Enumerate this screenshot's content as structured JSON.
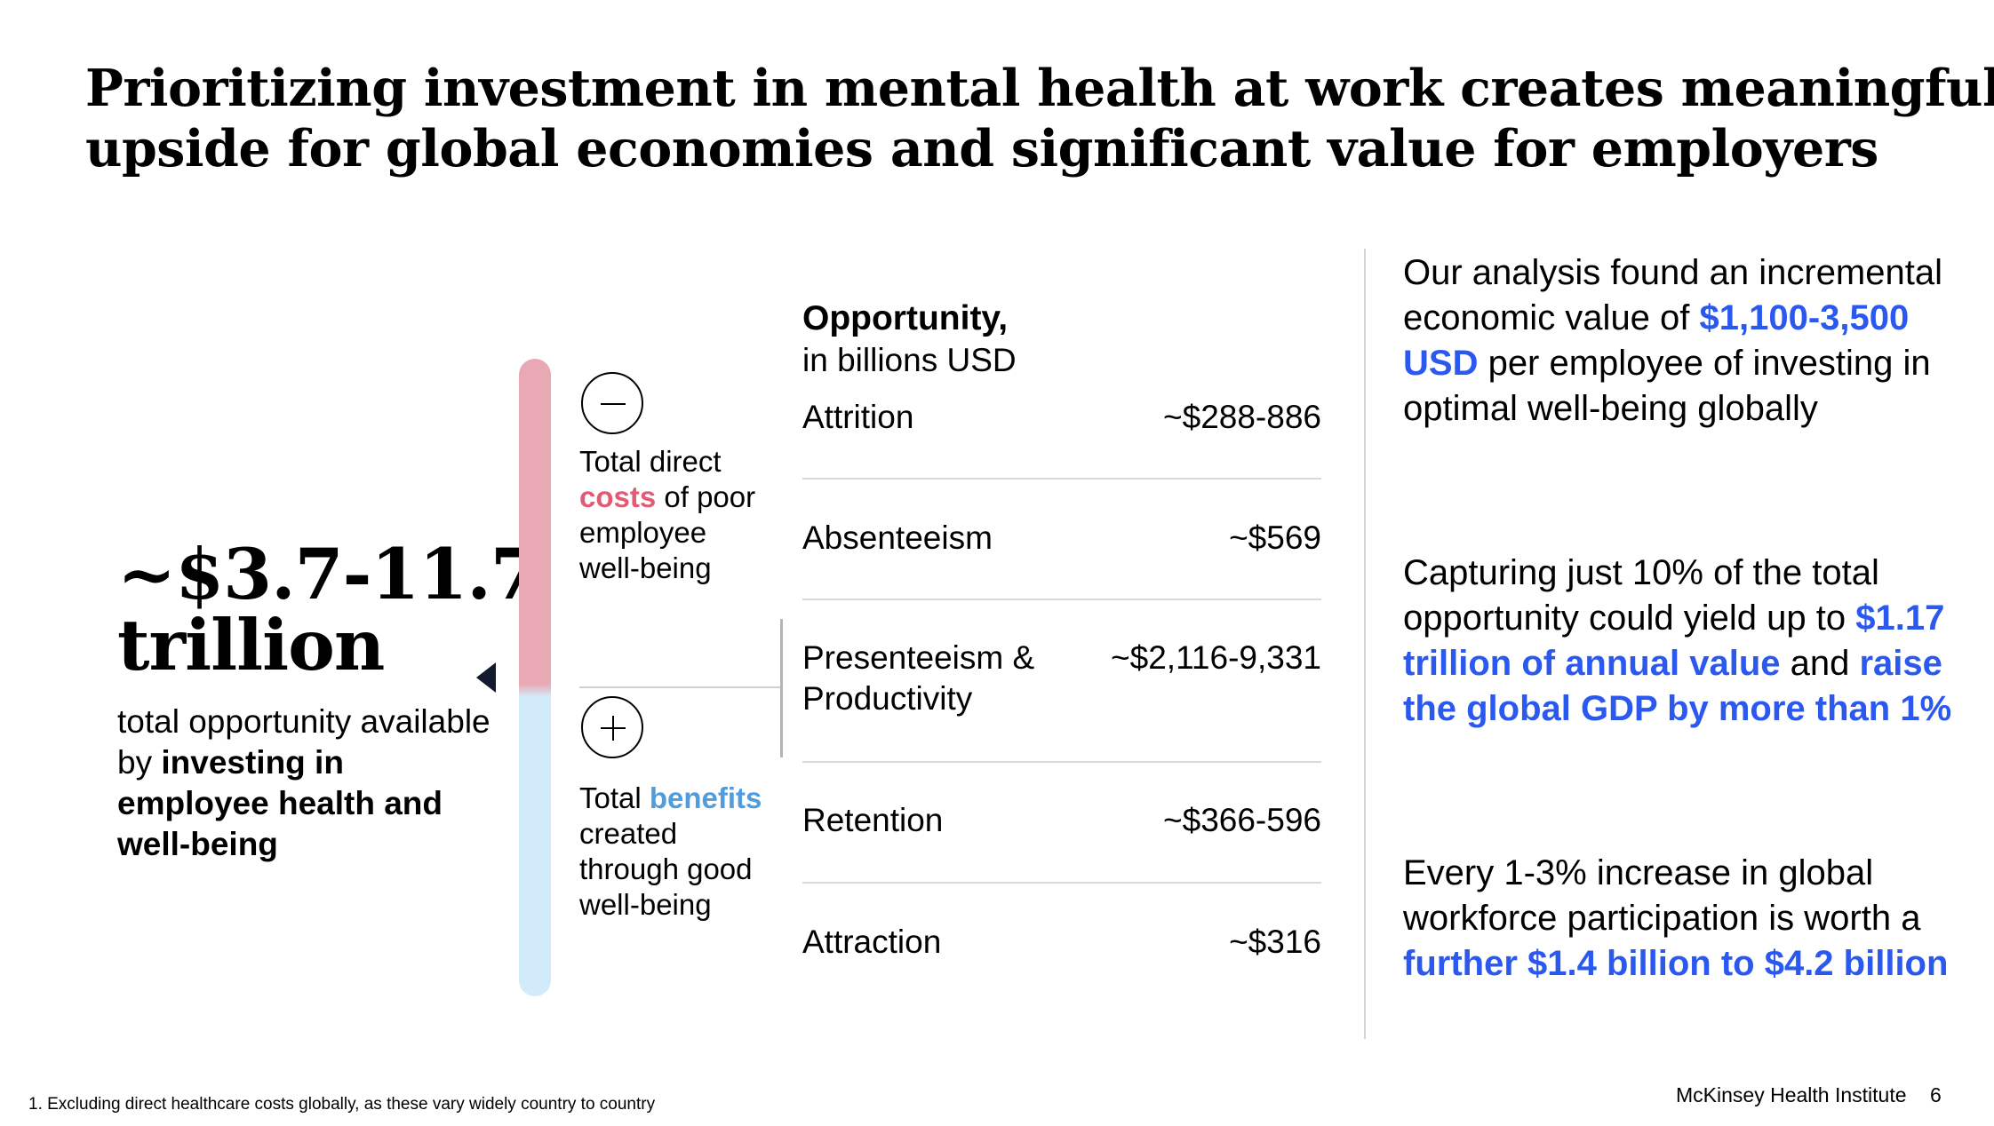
{
  "title": {
    "line1": "Prioritizing investment in mental health at work creates meaningful",
    "line2": "upside for global economies and significant value for employers"
  },
  "total": {
    "amount_line1": "~$3.7-11.7",
    "amount_line2": "trillion",
    "desc_plain": "total opportunity available by ",
    "desc_bold": "investing in employee health and well-being"
  },
  "scale": {
    "top_color": "#e8a9b4",
    "bottom_color": "#d2ebfa",
    "costs_label_pre": "Total direct ",
    "costs_label_accent": "costs",
    "costs_label_post": " of poor employee well-being",
    "benefits_label_pre": "Total ",
    "benefits_label_accent": "benefits",
    "benefits_label_post": " created through good well-being"
  },
  "opportunity": {
    "heading": "Opportunity,",
    "subheading": "in billions USD",
    "rows": [
      {
        "label": "Attrition",
        "value": "~$288-886"
      },
      {
        "label": "Absenteeism",
        "value": "~$569"
      },
      {
        "label": "Presenteeism & Productivity",
        "value": "~$2,116-9,331"
      },
      {
        "label": "Retention",
        "value": "~$366-596"
      },
      {
        "label": "Attraction",
        "value": "~$316"
      }
    ]
  },
  "insights": {
    "p1_pre": "Our analysis found an incremental economic value of ",
    "p1_hl": "$1,100-3,500 USD",
    "p1_post": " per employee of investing in optimal well-being globally",
    "p2_pre": "Capturing just 10% of the total opportunity could yield up to ",
    "p2_hl1": "$1.17 trillion of annual value",
    "p2_mid": " and ",
    "p2_hl2": "raise the global GDP by more than 1%",
    "p3_pre": "Every 1-3% increase in global workforce participation is worth a ",
    "p3_hl": "further $1.4 billion to $4.2 billion",
    "highlight_color": "#2b59f0"
  },
  "footer": {
    "footnote": "1. Excluding direct healthcare costs globally, as these vary widely country to country",
    "brand": "McKinsey Health Institute",
    "page": "6"
  }
}
